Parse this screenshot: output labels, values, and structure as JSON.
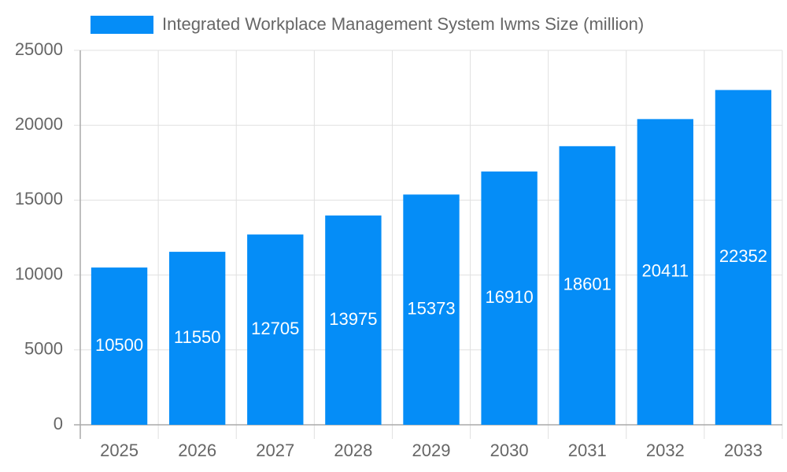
{
  "chart_data": {
    "type": "bar",
    "categories": [
      "2025",
      "2026",
      "2027",
      "2028",
      "2029",
      "2030",
      "2031",
      "2032",
      "2033"
    ],
    "series": [
      {
        "name": "Integrated Workplace Management System Iwms Size (million)",
        "color": "#058df7",
        "values": [
          10500,
          11550,
          12705,
          13975,
          15373,
          16910,
          18601,
          20411,
          22352
        ]
      }
    ],
    "ylim": [
      0,
      25000
    ],
    "yticks": [
      0,
      5000,
      10000,
      15000,
      20000,
      25000
    ],
    "grid": true
  }
}
